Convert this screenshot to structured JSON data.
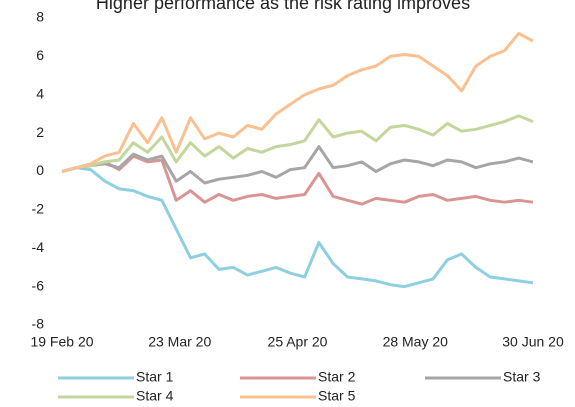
{
  "chart_data": {
    "type": "line",
    "title": "Higher performance as the risk rating improves",
    "x": [
      0,
      4,
      8,
      12,
      16,
      20,
      24,
      28,
      32,
      36,
      40,
      44,
      48,
      52,
      56,
      60,
      64,
      68,
      72,
      76,
      80,
      84,
      88,
      92,
      96,
      100,
      104,
      108,
      112,
      116,
      120,
      124,
      128,
      132
    ],
    "xlim": [
      0,
      132
    ],
    "xticks": [
      {
        "value": 0,
        "label": "19 Feb 20"
      },
      {
        "value": 33,
        "label": "23 Mar 20"
      },
      {
        "value": 66,
        "label": "25 Apr 20"
      },
      {
        "value": 99,
        "label": "28 May 20"
      },
      {
        "value": 132,
        "label": "30 Jun 20"
      }
    ],
    "ylim": [
      -8,
      8
    ],
    "yticks": [
      -8,
      -6,
      -4,
      -2,
      0,
      2,
      4,
      6,
      8
    ],
    "grid": false,
    "legend": "bottom",
    "series": [
      {
        "name": "Star 1",
        "color": "#8ecfe0",
        "values": [
          0,
          0.2,
          0.1,
          -0.5,
          -0.9,
          -1.0,
          -1.3,
          -1.5,
          -3.0,
          -4.5,
          -4.3,
          -5.1,
          -5.0,
          -5.4,
          -5.2,
          -5.0,
          -5.3,
          -5.5,
          -3.7,
          -4.8,
          -5.5,
          -5.6,
          -5.7,
          -5.9,
          -6.0,
          -5.8,
          -5.6,
          -4.6,
          -4.3,
          -5.0,
          -5.5,
          -5.6,
          -5.7,
          -5.8
        ]
      },
      {
        "name": "Star 2",
        "color": "#d99594",
        "values": [
          0,
          0.2,
          0.3,
          0.5,
          0.1,
          0.8,
          0.5,
          0.6,
          -1.5,
          -1.0,
          -1.6,
          -1.2,
          -1.5,
          -1.3,
          -1.2,
          -1.4,
          -1.3,
          -1.2,
          -0.1,
          -1.3,
          -1.5,
          -1.7,
          -1.4,
          -1.5,
          -1.6,
          -1.3,
          -1.2,
          -1.5,
          -1.4,
          -1.3,
          -1.5,
          -1.6,
          -1.5,
          -1.6
        ]
      },
      {
        "name": "Star 3",
        "color": "#a6a6a6",
        "values": [
          0,
          0.2,
          0.3,
          0.4,
          0.2,
          0.9,
          0.6,
          0.8,
          -0.5,
          0.0,
          -0.6,
          -0.4,
          -0.3,
          -0.2,
          0,
          -0.3,
          0.1,
          0.2,
          1.3,
          0.2,
          0.3,
          0.5,
          0,
          0.4,
          0.6,
          0.5,
          0.3,
          0.6,
          0.5,
          0.2,
          0.4,
          0.5,
          0.7,
          0.5
        ]
      },
      {
        "name": "Star 4",
        "color": "#c3d69b",
        "values": [
          0,
          0.2,
          0.3,
          0.5,
          0.6,
          1.5,
          1.0,
          1.8,
          0.5,
          1.5,
          0.8,
          1.3,
          0.7,
          1.2,
          1.0,
          1.3,
          1.4,
          1.6,
          2.7,
          1.8,
          2.0,
          2.1,
          1.6,
          2.3,
          2.4,
          2.2,
          1.9,
          2.5,
          2.1,
          2.2,
          2.4,
          2.6,
          2.9,
          2.6
        ]
      },
      {
        "name": "Star 5",
        "color": "#fac090",
        "values": [
          0,
          0.2,
          0.4,
          0.8,
          1.0,
          2.5,
          1.5,
          2.8,
          1.0,
          2.8,
          1.7,
          2.0,
          1.8,
          2.4,
          2.2,
          3.0,
          3.5,
          4.0,
          4.3,
          4.5,
          5.0,
          5.3,
          5.5,
          6.0,
          6.1,
          6.0,
          5.5,
          5.0,
          4.2,
          5.5,
          6.0,
          6.3,
          7.2,
          6.8
        ]
      }
    ]
  }
}
